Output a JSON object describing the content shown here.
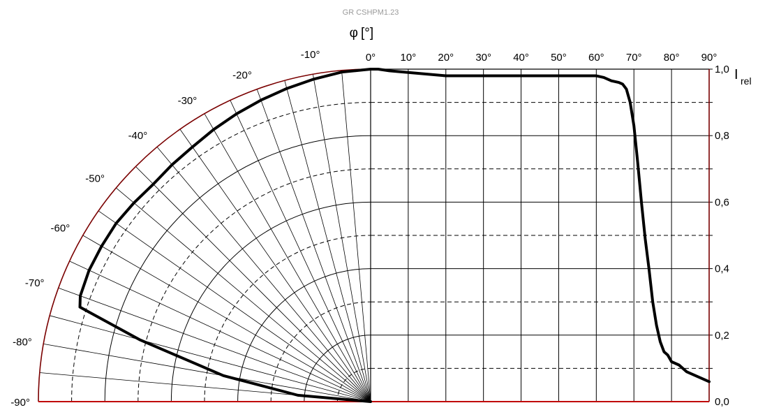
{
  "chart_data": {
    "type": "line",
    "title": "GR CSHPM1.23",
    "phi_symbol": "φ",
    "phi_unit": "[°]",
    "intensity_label": "I",
    "intensity_subscript": "rel",
    "left_panel": {
      "kind": "polar",
      "angle_labels": [
        "0°",
        "-10°",
        "-20°",
        "-30°",
        "-40°",
        "-50°",
        "-60°",
        "-70°",
        "-80°",
        "-90°"
      ],
      "angles_deg": [
        0,
        -5,
        -10,
        -15,
        -20,
        -25,
        -30,
        -35,
        -40,
        -45,
        -50,
        -55,
        -60,
        -65,
        -70,
        -72,
        -75,
        -80,
        -85,
        -90
      ],
      "values": [
        1.0,
        0.995,
        0.985,
        0.975,
        0.965,
        0.955,
        0.945,
        0.935,
        0.93,
        0.925,
        0.93,
        0.935,
        0.935,
        0.935,
        0.93,
        0.92,
        0.72,
        0.45,
        0.22,
        0.0
      ],
      "radial_range": [
        0,
        1.0
      ],
      "rings_solid": [
        0.2,
        0.4,
        0.6,
        0.8,
        1.0
      ],
      "rings_dashed": [
        0.1,
        0.3,
        0.5,
        0.7,
        0.9
      ],
      "spoke_step_deg": 5
    },
    "right_panel": {
      "kind": "cartesian",
      "x_tick_labels": [
        "0°",
        "10°",
        "20°",
        "30°",
        "40°",
        "50°",
        "60°",
        "70°",
        "80°",
        "90°"
      ],
      "y_tick_labels": [
        "0,0",
        "0,2",
        "0,4",
        "0,6",
        "0,8",
        "1,0"
      ],
      "x": [
        0,
        2,
        5,
        10,
        15,
        20,
        30,
        40,
        50,
        60,
        62,
        64,
        66,
        67,
        68,
        69,
        70,
        71,
        72,
        73,
        74,
        75,
        76,
        77,
        78,
        79,
        80,
        82,
        84,
        86,
        88,
        90
      ],
      "y": [
        1.0,
        1.0,
        0.995,
        0.99,
        0.985,
        0.98,
        0.98,
        0.98,
        0.98,
        0.98,
        0.975,
        0.965,
        0.96,
        0.955,
        0.94,
        0.9,
        0.83,
        0.72,
        0.6,
        0.49,
        0.4,
        0.3,
        0.23,
        0.18,
        0.15,
        0.14,
        0.12,
        0.11,
        0.09,
        0.08,
        0.07,
        0.06
      ],
      "xlim": [
        0,
        90
      ],
      "ylim": [
        0,
        1.0
      ],
      "gridlines_solid": [
        0.2,
        0.4,
        0.6,
        0.8,
        1.0
      ],
      "gridlines_dashed": [
        0.1,
        0.3,
        0.5,
        0.7,
        0.9
      ]
    },
    "colors": {
      "curve": "#000000",
      "grid": "#000000",
      "frame": "#7a0000",
      "baseline": "#c00000"
    },
    "grid": true,
    "legend": "none"
  }
}
